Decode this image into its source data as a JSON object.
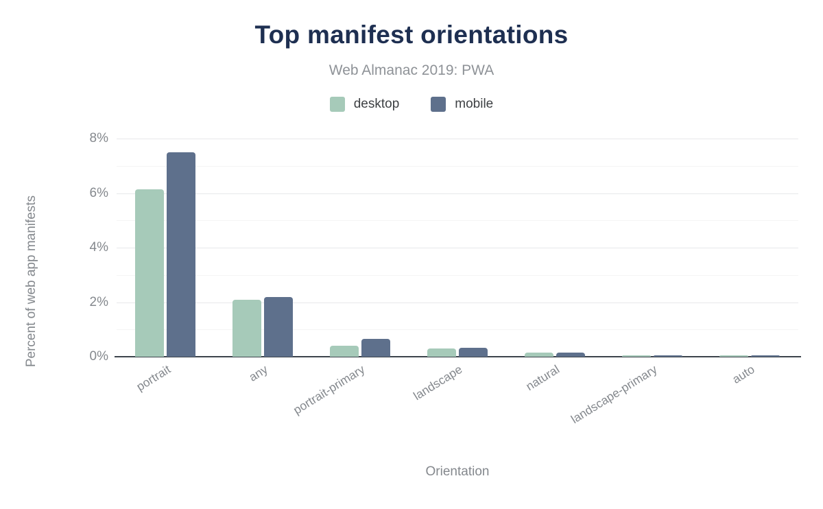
{
  "header": {
    "title": "Top manifest orientations",
    "subtitle": "Web Almanac 2019: PWA"
  },
  "legend": [
    {
      "label": "desktop",
      "color": "#a6cab9"
    },
    {
      "label": "mobile",
      "color": "#5e708c"
    }
  ],
  "chart_data": {
    "type": "bar",
    "title": "Top manifest orientations",
    "subtitle": "Web Almanac 2019: PWA",
    "categories": [
      "portrait",
      "any",
      "portrait-primary",
      "landscape",
      "natural",
      "landscape-primary",
      "auto"
    ],
    "series": [
      {
        "name": "desktop",
        "color": "#a6cab9",
        "values": [
          6.13,
          2.09,
          0.4,
          0.3,
          0.16,
          0.05,
          0.05
        ]
      },
      {
        "name": "mobile",
        "color": "#5e708c",
        "values": [
          7.5,
          2.18,
          0.65,
          0.34,
          0.15,
          0.05,
          0.05
        ]
      }
    ],
    "xlabel": "Orientation",
    "ylabel": "Percent of web app manifests",
    "ylim": [
      0,
      8
    ],
    "y_major_step": 2,
    "y_minor_step": 1,
    "yticks": [
      {
        "value": 8,
        "label": "8%"
      },
      {
        "value": 6,
        "label": "6%"
      },
      {
        "value": 4,
        "label": "4%"
      },
      {
        "value": 2,
        "label": "2%"
      },
      {
        "value": 0,
        "label": "0%"
      }
    ],
    "grid": "horizontal, major every 2%, minor every 1%",
    "legend_position": "top"
  },
  "colors": {
    "background": "#ffffff",
    "title_text": "#1e2f51",
    "subtitle_text": "#8e9297",
    "legend_text": "#3d4043",
    "muted_text": "#84888d",
    "axis_line": "#3c434b",
    "grid_major": "#e7e8ea",
    "grid_minor": "#f4f4f5"
  }
}
